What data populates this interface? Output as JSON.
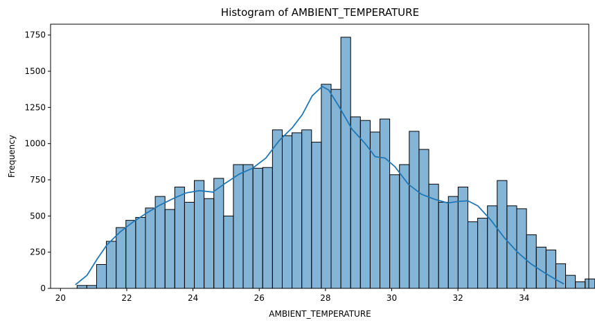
{
  "chart_data": {
    "type": "bar",
    "title": "Histogram of AMBIENT_TEMPERATURE",
    "xlabel": "AMBIENT_TEMPERATURE",
    "ylabel": "Frequency",
    "xlim": [
      19.7,
      35.95
    ],
    "ylim": [
      0,
      1825
    ],
    "xticks": [
      20,
      22,
      24,
      26,
      28,
      30,
      32,
      34
    ],
    "yticks": [
      0,
      250,
      500,
      750,
      1000,
      1250,
      1500,
      1750
    ],
    "grid": false,
    "bin_start": 20.5,
    "bin_width": 0.295,
    "values": [
      20,
      20,
      165,
      325,
      420,
      470,
      490,
      555,
      635,
      545,
      700,
      595,
      745,
      620,
      760,
      500,
      855,
      855,
      830,
      835,
      1095,
      1055,
      1075,
      1095,
      1010,
      1410,
      1375,
      1735,
      1185,
      1160,
      1080,
      1170,
      785,
      855,
      1085,
      960,
      720,
      595,
      635,
      700,
      460,
      485,
      570,
      745,
      570,
      550,
      370,
      285,
      265,
      170,
      90,
      45,
      65
    ],
    "kde": {
      "x": [
        20.45,
        20.8,
        21.1,
        21.4,
        21.8,
        22.2,
        22.6,
        23.0,
        23.4,
        23.8,
        24.2,
        24.6,
        25.0,
        25.4,
        25.8,
        26.2,
        26.6,
        27.0,
        27.3,
        27.6,
        27.9,
        28.1,
        28.4,
        28.8,
        29.2,
        29.5,
        29.8,
        30.1,
        30.5,
        30.9,
        31.3,
        31.7,
        32.0,
        32.3,
        32.6,
        33.0,
        33.4,
        33.8,
        34.2,
        34.6,
        35.0,
        35.2
      ],
      "y": [
        25,
        90,
        200,
        300,
        390,
        460,
        520,
        575,
        620,
        660,
        675,
        665,
        730,
        790,
        830,
        900,
        1020,
        1110,
        1200,
        1330,
        1395,
        1370,
        1260,
        1100,
        1000,
        910,
        900,
        840,
        720,
        650,
        615,
        590,
        600,
        605,
        570,
        470,
        350,
        250,
        170,
        110,
        55,
        30
      ]
    }
  }
}
